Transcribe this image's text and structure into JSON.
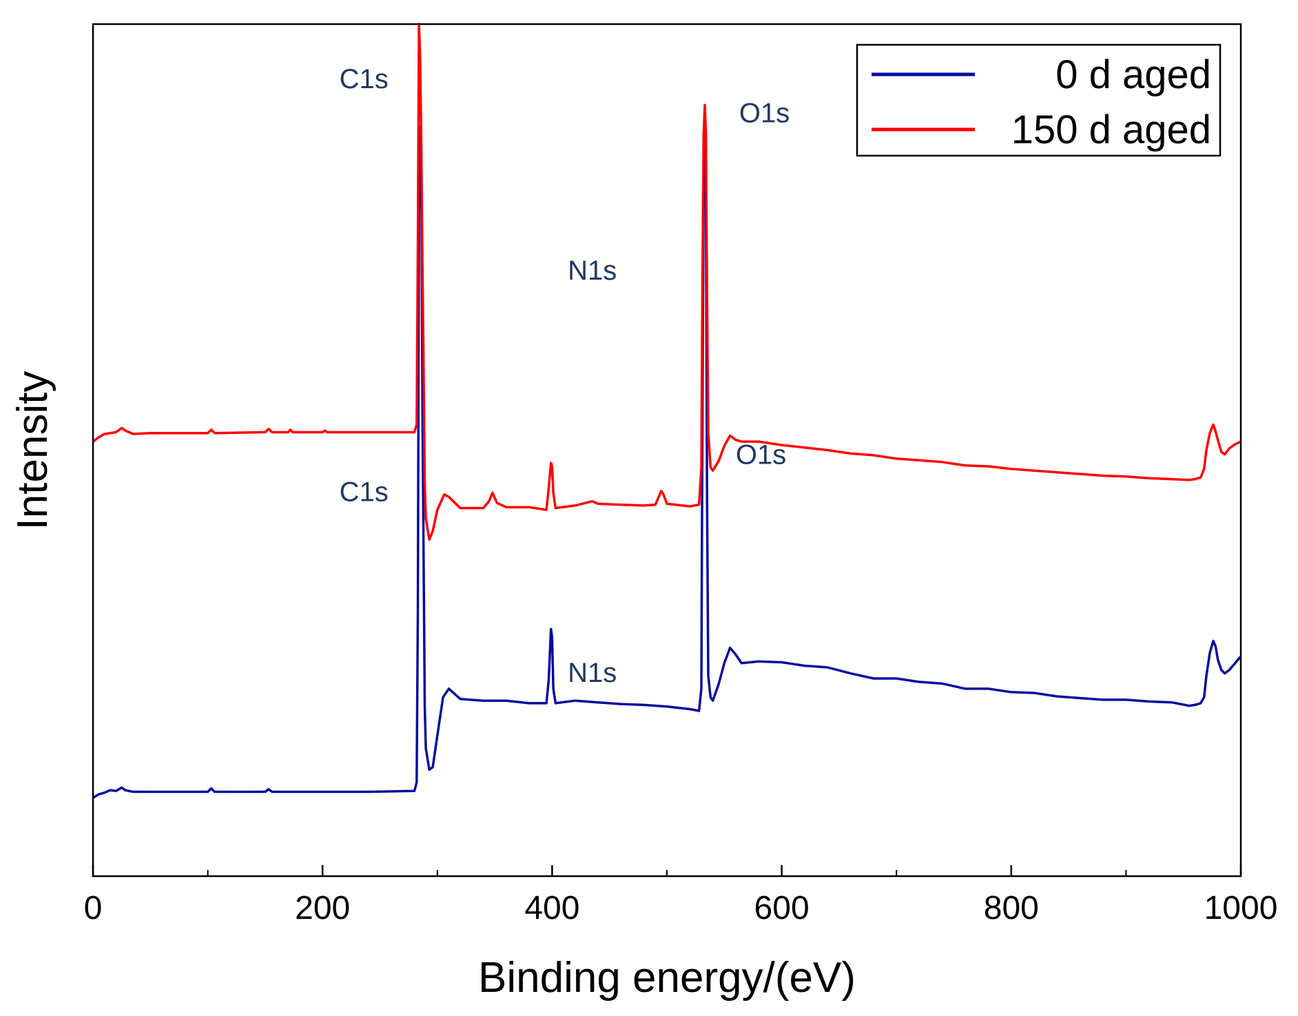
{
  "chart_data": {
    "type": "line",
    "title": "",
    "xlabel": "Binding energy/(eV)",
    "ylabel": "Intensity",
    "xlim": [
      0,
      1000
    ],
    "ylim": [
      0,
      1000
    ],
    "xticks": [
      0,
      200,
      400,
      600,
      800,
      1000
    ],
    "xtick_labels": [
      "0",
      "200",
      "400",
      "600",
      "800",
      "1000"
    ],
    "minor_xticks": [
      100,
      300,
      500,
      700,
      900
    ],
    "y_tick_labels_shown": false,
    "grid": false,
    "legend_position": "top-right",
    "series": [
      {
        "name": "0 d aged",
        "color": "#0a0aa0",
        "points": [
          [
            0,
            92
          ],
          [
            5,
            96
          ],
          [
            10,
            98
          ],
          [
            15,
            101
          ],
          [
            20,
            100
          ],
          [
            25,
            104
          ],
          [
            28,
            101
          ],
          [
            35,
            99
          ],
          [
            50,
            99
          ],
          [
            100,
            99
          ],
          [
            103,
            103
          ],
          [
            106,
            99
          ],
          [
            150,
            99
          ],
          [
            153,
            102
          ],
          [
            156,
            99
          ],
          [
            200,
            99
          ],
          [
            240,
            99
          ],
          [
            280,
            100
          ],
          [
            282,
            110
          ],
          [
            283,
            310
          ],
          [
            284,
            770
          ],
          [
            285,
            880
          ],
          [
            286,
            850
          ],
          [
            287,
            560
          ],
          [
            288,
            380
          ],
          [
            289,
            200
          ],
          [
            290,
            150
          ],
          [
            293,
            125
          ],
          [
            296,
            128
          ],
          [
            300,
            165
          ],
          [
            305,
            210
          ],
          [
            310,
            220
          ],
          [
            320,
            208
          ],
          [
            340,
            206
          ],
          [
            360,
            206
          ],
          [
            380,
            203
          ],
          [
            395,
            203
          ],
          [
            397,
            230
          ],
          [
            399,
            290
          ],
          [
            400,
            280
          ],
          [
            401,
            220
          ],
          [
            403,
            203
          ],
          [
            420,
            206
          ],
          [
            440,
            204
          ],
          [
            460,
            202
          ],
          [
            480,
            201
          ],
          [
            500,
            199
          ],
          [
            520,
            196
          ],
          [
            528,
            194
          ],
          [
            530,
            220
          ],
          [
            531,
            550
          ],
          [
            532,
            820
          ],
          [
            533,
            860
          ],
          [
            534,
            800
          ],
          [
            535,
            440
          ],
          [
            536,
            235
          ],
          [
            538,
            210
          ],
          [
            540,
            206
          ],
          [
            545,
            225
          ],
          [
            550,
            250
          ],
          [
            555,
            268
          ],
          [
            560,
            260
          ],
          [
            565,
            250
          ],
          [
            580,
            252
          ],
          [
            600,
            251
          ],
          [
            620,
            247
          ],
          [
            640,
            245
          ],
          [
            660,
            238
          ],
          [
            680,
            232
          ],
          [
            700,
            232
          ],
          [
            720,
            228
          ],
          [
            740,
            226
          ],
          [
            760,
            220
          ],
          [
            780,
            220
          ],
          [
            800,
            216
          ],
          [
            820,
            215
          ],
          [
            840,
            211
          ],
          [
            860,
            209
          ],
          [
            880,
            207
          ],
          [
            900,
            207
          ],
          [
            920,
            205
          ],
          [
            940,
            204
          ],
          [
            955,
            200
          ],
          [
            960,
            201
          ],
          [
            965,
            203
          ],
          [
            968,
            210
          ],
          [
            970,
            235
          ],
          [
            973,
            262
          ],
          [
            976,
            276
          ],
          [
            978,
            270
          ],
          [
            980,
            254
          ],
          [
            983,
            242
          ],
          [
            986,
            238
          ],
          [
            990,
            242
          ],
          [
            995,
            250
          ],
          [
            1000,
            258
          ]
        ]
      },
      {
        "name": "150 d aged",
        "color": "#ff0000",
        "points": [
          [
            0,
            510
          ],
          [
            5,
            515
          ],
          [
            10,
            519
          ],
          [
            20,
            521
          ],
          [
            25,
            526
          ],
          [
            28,
            523
          ],
          [
            35,
            519
          ],
          [
            50,
            520
          ],
          [
            100,
            520
          ],
          [
            103,
            524
          ],
          [
            106,
            520
          ],
          [
            150,
            521
          ],
          [
            153,
            525
          ],
          [
            156,
            521
          ],
          [
            170,
            521
          ],
          [
            172,
            524
          ],
          [
            174,
            521
          ],
          [
            200,
            521
          ],
          [
            202,
            523
          ],
          [
            204,
            521
          ],
          [
            240,
            521
          ],
          [
            280,
            521
          ],
          [
            282,
            530
          ],
          [
            283,
            740
          ],
          [
            284,
            1000
          ],
          [
            285,
            960
          ],
          [
            286,
            860
          ],
          [
            287,
            720
          ],
          [
            288,
            600
          ],
          [
            289,
            460
          ],
          [
            290,
            420
          ],
          [
            293,
            395
          ],
          [
            296,
            405
          ],
          [
            300,
            430
          ],
          [
            306,
            448
          ],
          [
            310,
            445
          ],
          [
            320,
            432
          ],
          [
            340,
            432
          ],
          [
            345,
            440
          ],
          [
            348,
            450
          ],
          [
            352,
            438
          ],
          [
            360,
            433
          ],
          [
            380,
            433
          ],
          [
            395,
            430
          ],
          [
            397,
            455
          ],
          [
            399,
            485
          ],
          [
            400,
            480
          ],
          [
            401,
            450
          ],
          [
            403,
            432
          ],
          [
            420,
            435
          ],
          [
            435,
            440
          ],
          [
            440,
            437
          ],
          [
            460,
            436
          ],
          [
            480,
            435
          ],
          [
            490,
            436
          ],
          [
            495,
            452
          ],
          [
            497,
            448
          ],
          [
            500,
            437
          ],
          [
            520,
            434
          ],
          [
            528,
            436
          ],
          [
            530,
            480
          ],
          [
            531,
            700
          ],
          [
            532,
            870
          ],
          [
            533,
            905
          ],
          [
            534,
            870
          ],
          [
            535,
            680
          ],
          [
            536,
            520
          ],
          [
            538,
            480
          ],
          [
            540,
            476
          ],
          [
            545,
            487
          ],
          [
            550,
            505
          ],
          [
            555,
            517
          ],
          [
            560,
            512
          ],
          [
            565,
            510
          ],
          [
            580,
            510
          ],
          [
            600,
            506
          ],
          [
            620,
            503
          ],
          [
            640,
            500
          ],
          [
            660,
            496
          ],
          [
            680,
            494
          ],
          [
            700,
            490
          ],
          [
            720,
            488
          ],
          [
            740,
            486
          ],
          [
            760,
            482
          ],
          [
            780,
            481
          ],
          [
            800,
            478
          ],
          [
            820,
            476
          ],
          [
            840,
            474
          ],
          [
            860,
            472
          ],
          [
            880,
            470
          ],
          [
            900,
            469
          ],
          [
            920,
            467
          ],
          [
            940,
            466
          ],
          [
            955,
            465
          ],
          [
            960,
            466
          ],
          [
            965,
            468
          ],
          [
            968,
            478
          ],
          [
            970,
            500
          ],
          [
            973,
            520
          ],
          [
            976,
            530
          ],
          [
            978,
            522
          ],
          [
            980,
            512
          ],
          [
            983,
            498
          ],
          [
            986,
            495
          ],
          [
            990,
            502
          ],
          [
            995,
            507
          ],
          [
            1000,
            510
          ]
        ]
      }
    ],
    "annotations": [
      {
        "text": "C1s",
        "x": 236,
        "y": 925
      },
      {
        "text": "O1s",
        "x": 585,
        "y": 885
      },
      {
        "text": "N1s",
        "x": 435,
        "y": 700
      },
      {
        "text": "O1s",
        "x": 582,
        "y": 484
      },
      {
        "text": "C1s",
        "x": 236,
        "y": 440
      },
      {
        "text": "N1s",
        "x": 435,
        "y": 228
      }
    ],
    "annotation_color": "#1f3864"
  }
}
